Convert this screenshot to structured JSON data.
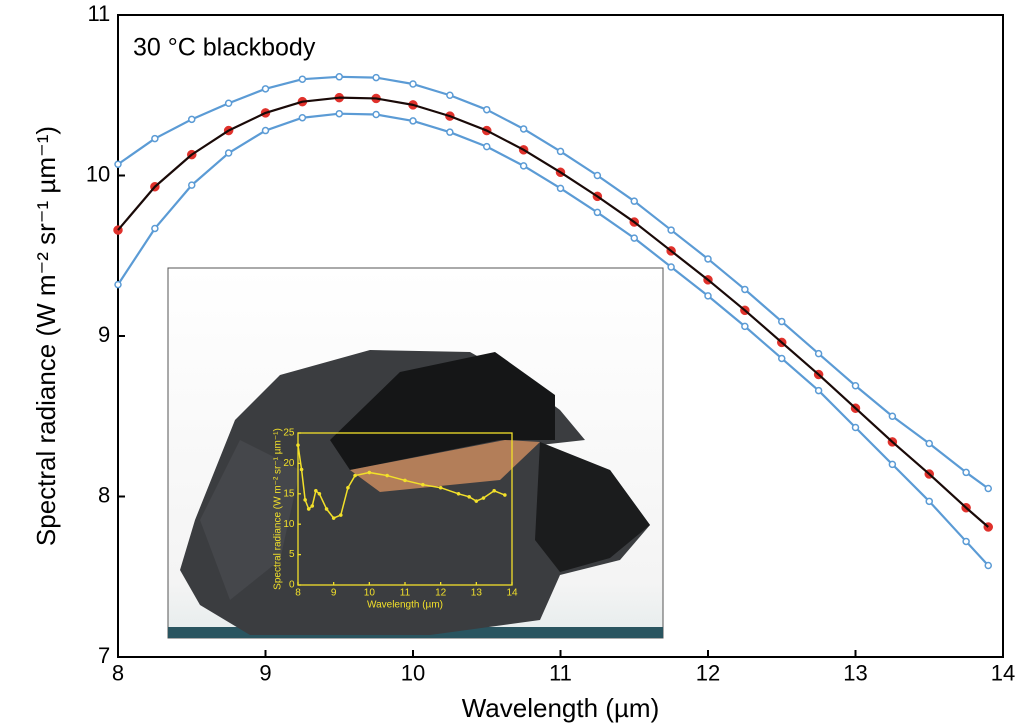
{
  "chart_data": [
    {
      "type": "line",
      "annotation": "30 °C blackbody",
      "xlabel": "Wavelength (µm)",
      "ylabel": "Spectral radiance (W m⁻² sr⁻¹ µm⁻¹)",
      "xlim": [
        8,
        14
      ],
      "ylim": [
        7,
        11
      ],
      "xticks": [
        8,
        9,
        10,
        11,
        12,
        13,
        14
      ],
      "yticks": [
        7,
        8,
        9,
        10,
        11
      ],
      "x": [
        8.0,
        8.25,
        8.5,
        8.75,
        9.0,
        9.25,
        9.5,
        9.75,
        10.0,
        10.25,
        10.5,
        10.75,
        11.0,
        11.25,
        11.5,
        11.75,
        12.0,
        12.25,
        12.5,
        12.75,
        13.0,
        13.25,
        13.5,
        13.75,
        13.9
      ],
      "series": [
        {
          "color": "#5b9bd5",
          "marker": "open",
          "line": true,
          "values": [
            10.07,
            10.23,
            10.35,
            10.45,
            10.54,
            10.6,
            10.615,
            10.61,
            10.57,
            10.5,
            10.41,
            10.29,
            10.15,
            10.0,
            9.84,
            9.66,
            9.48,
            9.29,
            9.09,
            8.89,
            8.69,
            8.5,
            8.33,
            8.15,
            8.05
          ]
        },
        {
          "color": "#5b9bd5",
          "marker": "open",
          "line": true,
          "values": [
            9.32,
            9.67,
            9.94,
            10.14,
            10.28,
            10.36,
            10.385,
            10.38,
            10.34,
            10.27,
            10.18,
            10.06,
            9.92,
            9.77,
            9.61,
            9.43,
            9.25,
            9.06,
            8.86,
            8.66,
            8.43,
            8.2,
            7.97,
            7.72,
            7.57
          ]
        },
        {
          "color": "#e0312b",
          "marker": "filled",
          "line": false,
          "values": [
            9.66,
            9.93,
            10.13,
            10.28,
            10.39,
            10.46,
            10.485,
            10.48,
            10.44,
            10.37,
            10.28,
            10.16,
            10.02,
            9.87,
            9.71,
            9.53,
            9.35,
            9.16,
            8.96,
            8.76,
            8.55,
            8.34,
            8.14,
            7.93,
            7.81
          ]
        },
        {
          "color": "#1a0a08",
          "marker": "none",
          "line": true,
          "values": [
            9.66,
            9.93,
            10.13,
            10.28,
            10.39,
            10.46,
            10.485,
            10.48,
            10.44,
            10.37,
            10.28,
            10.16,
            10.02,
            9.87,
            9.71,
            9.53,
            9.35,
            9.16,
            8.96,
            8.76,
            8.55,
            8.34,
            8.14,
            7.93,
            7.81
          ]
        }
      ]
    },
    {
      "type": "line",
      "xlabel": "Wavelength (µm)",
      "ylabel": "Spectral radiance (W m⁻² sr⁻¹ µm⁻¹)",
      "xlim": [
        8,
        14
      ],
      "ylim": [
        0,
        25
      ],
      "xticks": [
        8,
        9,
        10,
        11,
        12,
        13,
        14
      ],
      "yticks": [
        0,
        5,
        10,
        15,
        20,
        25
      ],
      "x": [
        8.0,
        8.1,
        8.2,
        8.3,
        8.4,
        8.5,
        8.6,
        8.8,
        9.0,
        9.2,
        9.4,
        9.6,
        10.0,
        10.5,
        11.0,
        11.5,
        12.0,
        12.5,
        12.8,
        13.0,
        13.2,
        13.5,
        13.8
      ],
      "series": [
        {
          "color": "#f2e02a",
          "marker": "filled",
          "line": true,
          "values": [
            23,
            19,
            14,
            12.5,
            13,
            15.5,
            15,
            12.5,
            11,
            11.5,
            16,
            18,
            18.5,
            18,
            17.2,
            16.5,
            16,
            15,
            14.5,
            13.8,
            14.3,
            15.5,
            14.8
          ]
        }
      ]
    }
  ]
}
